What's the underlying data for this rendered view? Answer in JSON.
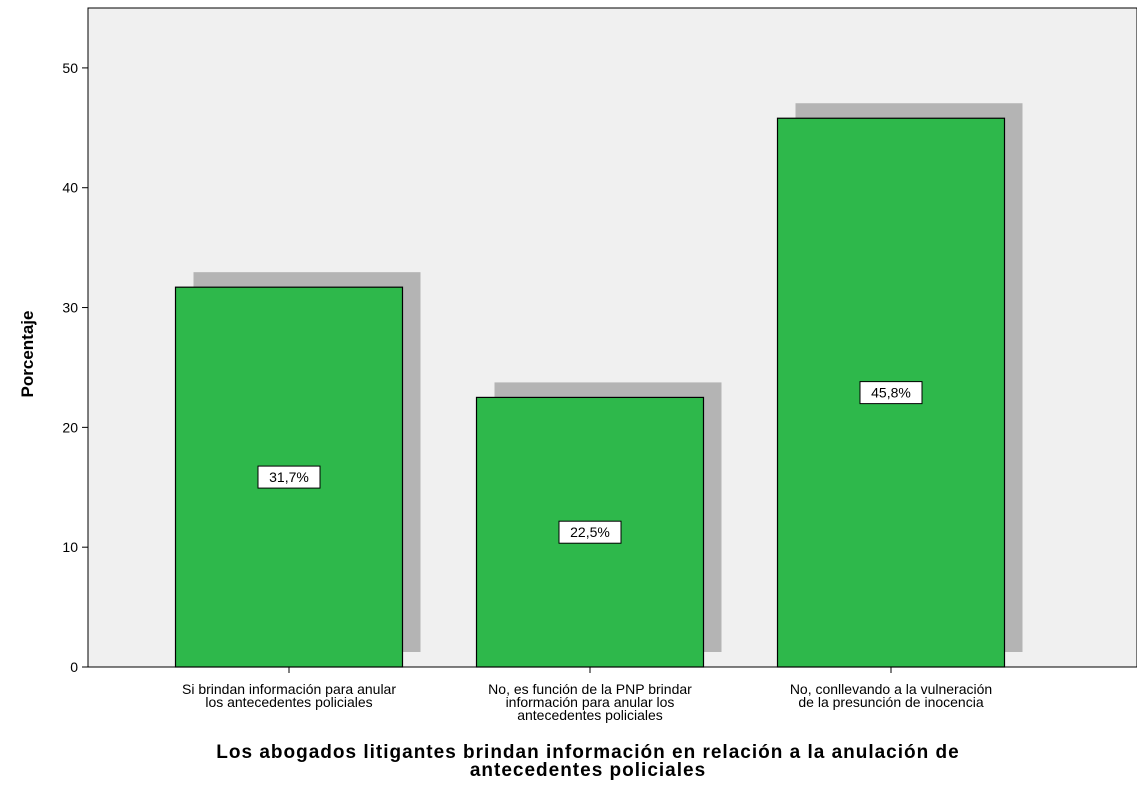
{
  "chart_data": {
    "type": "bar",
    "categories": [
      [
        "Si brindan información para anular",
        "los antecedentes policiales"
      ],
      [
        "No, es función de la PNP brindar",
        "información para anular los",
        "antecedentes policiales"
      ],
      [
        "No, conllevando a la vulneración",
        "de la presunción de inocencia"
      ]
    ],
    "values": [
      31.7,
      22.5,
      45.8
    ],
    "data_labels": [
      "31,7%",
      "22,5%",
      "45,8%"
    ],
    "ylabel": "Porcentaje",
    "xlabel": [
      "Los abogados litigantes brindan información en relación a la anulación de",
      "antecedentes policiales"
    ],
    "ylim": [
      0,
      55
    ],
    "yticks": [
      0,
      10,
      20,
      30,
      40,
      50
    ],
    "grid": false,
    "colors": {
      "bar": "#2eb84b",
      "shadow": "#b4b4b4",
      "plot_bg": "#f0f0f0",
      "axis": "#000000"
    }
  }
}
